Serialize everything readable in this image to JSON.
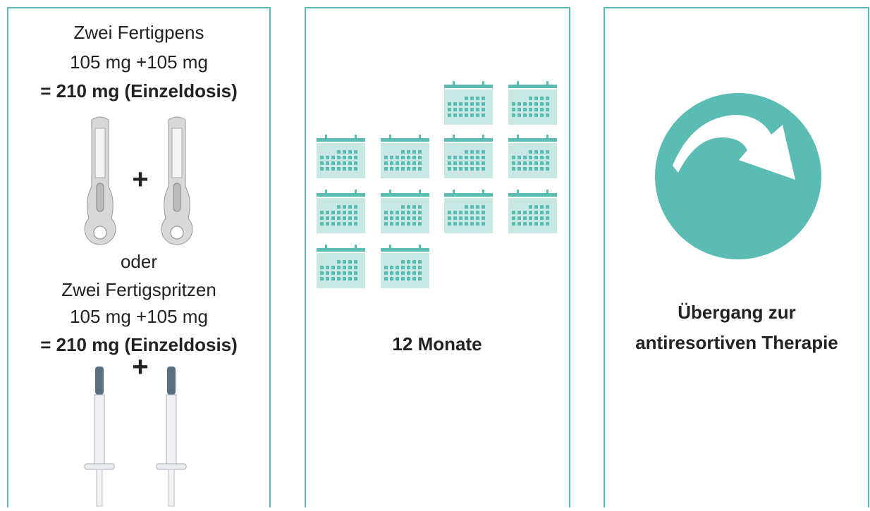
{
  "panels": [
    {
      "lines": [
        "Zwei Fertigpens",
        "105 mg +105 mg",
        "= 210 mg (Einzeldosis)"
      ],
      "plus_1": "+",
      "separator": "oder",
      "lines_2": [
        "Zwei Fertigspritzen",
        "105 mg +105 mg",
        "= 210 mg (Einzeldosis)"
      ],
      "plus_2": "+"
    },
    {
      "label": "12 Monate"
    },
    {
      "lines": [
        "Übergang zur",
        "antiresortiven Therapie"
      ]
    }
  ]
}
